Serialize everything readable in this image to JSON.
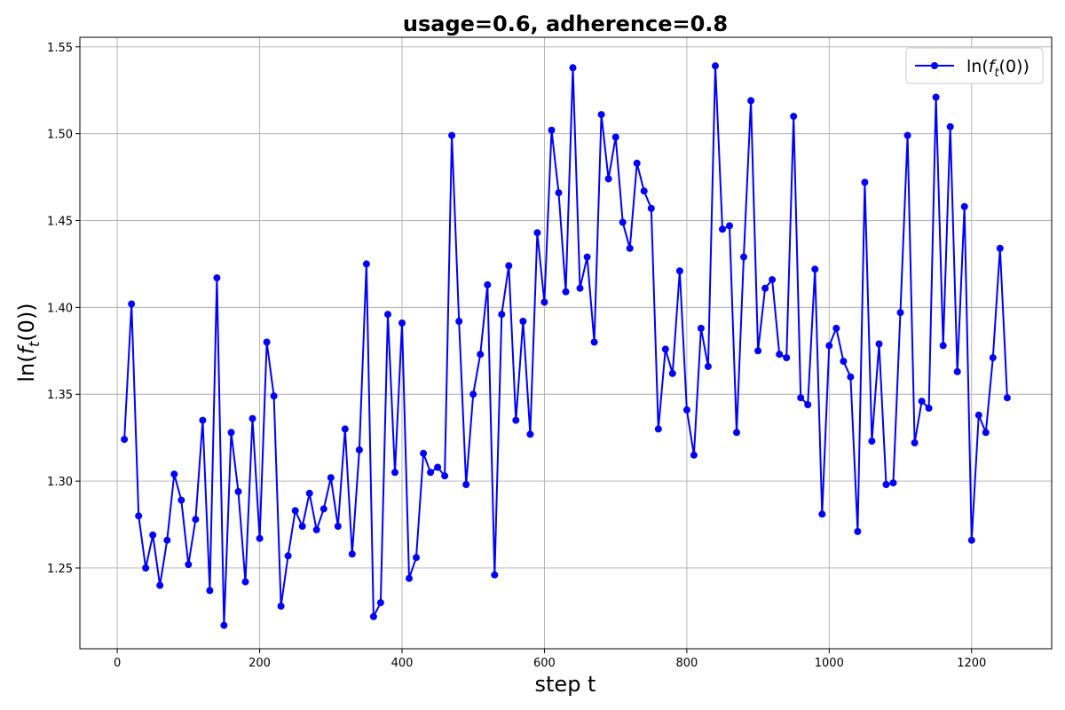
{
  "chart_data": {
    "type": "line",
    "title": "usage=0.6, adherence=0.8",
    "xlabel": "step t",
    "ylabel": "ln(f_t(0))",
    "xlim": [
      -52.5,
      1312.5
    ],
    "ylim": [
      1.2035,
      1.5555
    ],
    "xticks": [
      0,
      200,
      400,
      600,
      800,
      1000,
      1200
    ],
    "xtick_labels": [
      "0",
      "200",
      "400",
      "600",
      "800",
      "1000",
      "1200"
    ],
    "yticks": [
      1.25,
      1.3,
      1.35,
      1.4,
      1.45,
      1.5,
      1.55
    ],
    "ytick_labels": [
      "1.25",
      "1.30",
      "1.35",
      "1.40",
      "1.45",
      "1.50",
      "1.55"
    ],
    "grid": true,
    "legend_position": "top-right",
    "color": "#0000ff",
    "series": [
      {
        "name": "ln(f_t(0))",
        "x": [
          10,
          20,
          30,
          40,
          50,
          60,
          70,
          80,
          90,
          100,
          110,
          120,
          130,
          140,
          150,
          160,
          170,
          180,
          190,
          200,
          210,
          220,
          230,
          240,
          250,
          260,
          270,
          280,
          290,
          300,
          310,
          320,
          330,
          340,
          350,
          360,
          370,
          380,
          390,
          400,
          410,
          420,
          430,
          440,
          450,
          460,
          470,
          480,
          490,
          500,
          510,
          520,
          530,
          540,
          550,
          560,
          570,
          580,
          590,
          600,
          610,
          620,
          630,
          640,
          650,
          660,
          670,
          680,
          690,
          700,
          710,
          720,
          730,
          740,
          750,
          760,
          770,
          780,
          790,
          800,
          810,
          820,
          830,
          840,
          850,
          860,
          870,
          880,
          890,
          900,
          910,
          920,
          930,
          940,
          950,
          960,
          970,
          980,
          990,
          1000,
          1010,
          1020,
          1030,
          1040,
          1050,
          1060,
          1070,
          1080,
          1090,
          1100,
          1110,
          1120,
          1130,
          1140,
          1150,
          1160,
          1170,
          1180,
          1190,
          1200,
          1210,
          1220,
          1230,
          1240,
          1250
        ],
        "values": [
          1.324,
          1.402,
          1.28,
          1.25,
          1.269,
          1.24,
          1.266,
          1.304,
          1.289,
          1.252,
          1.278,
          1.335,
          1.237,
          1.417,
          1.217,
          1.328,
          1.294,
          1.242,
          1.336,
          1.267,
          1.38,
          1.349,
          1.228,
          1.257,
          1.283,
          1.274,
          1.293,
          1.272,
          1.284,
          1.302,
          1.274,
          1.33,
          1.258,
          1.318,
          1.425,
          1.222,
          1.23,
          1.396,
          1.305,
          1.391,
          1.244,
          1.256,
          1.316,
          1.305,
          1.308,
          1.303,
          1.499,
          1.392,
          1.298,
          1.35,
          1.373,
          1.413,
          1.246,
          1.396,
          1.424,
          1.335,
          1.392,
          1.327,
          1.443,
          1.403,
          1.502,
          1.466,
          1.409,
          1.538,
          1.411,
          1.429,
          1.38,
          1.511,
          1.474,
          1.498,
          1.449,
          1.434,
          1.483,
          1.467,
          1.457,
          1.33,
          1.376,
          1.362,
          1.421,
          1.341,
          1.315,
          1.388,
          1.366,
          1.539,
          1.445,
          1.447,
          1.328,
          1.429,
          1.519,
          1.375,
          1.411,
          1.416,
          1.373,
          1.371,
          1.51,
          1.348,
          1.344,
          1.422,
          1.281,
          1.378,
          1.388,
          1.369,
          1.36,
          1.271,
          1.472,
          1.323,
          1.379,
          1.298,
          1.299,
          1.397,
          1.499,
          1.322,
          1.346,
          1.342,
          1.521,
          1.378,
          1.504,
          1.363,
          1.458,
          1.266,
          1.338,
          1.328,
          1.371,
          1.434,
          1.348
        ]
      }
    ]
  }
}
